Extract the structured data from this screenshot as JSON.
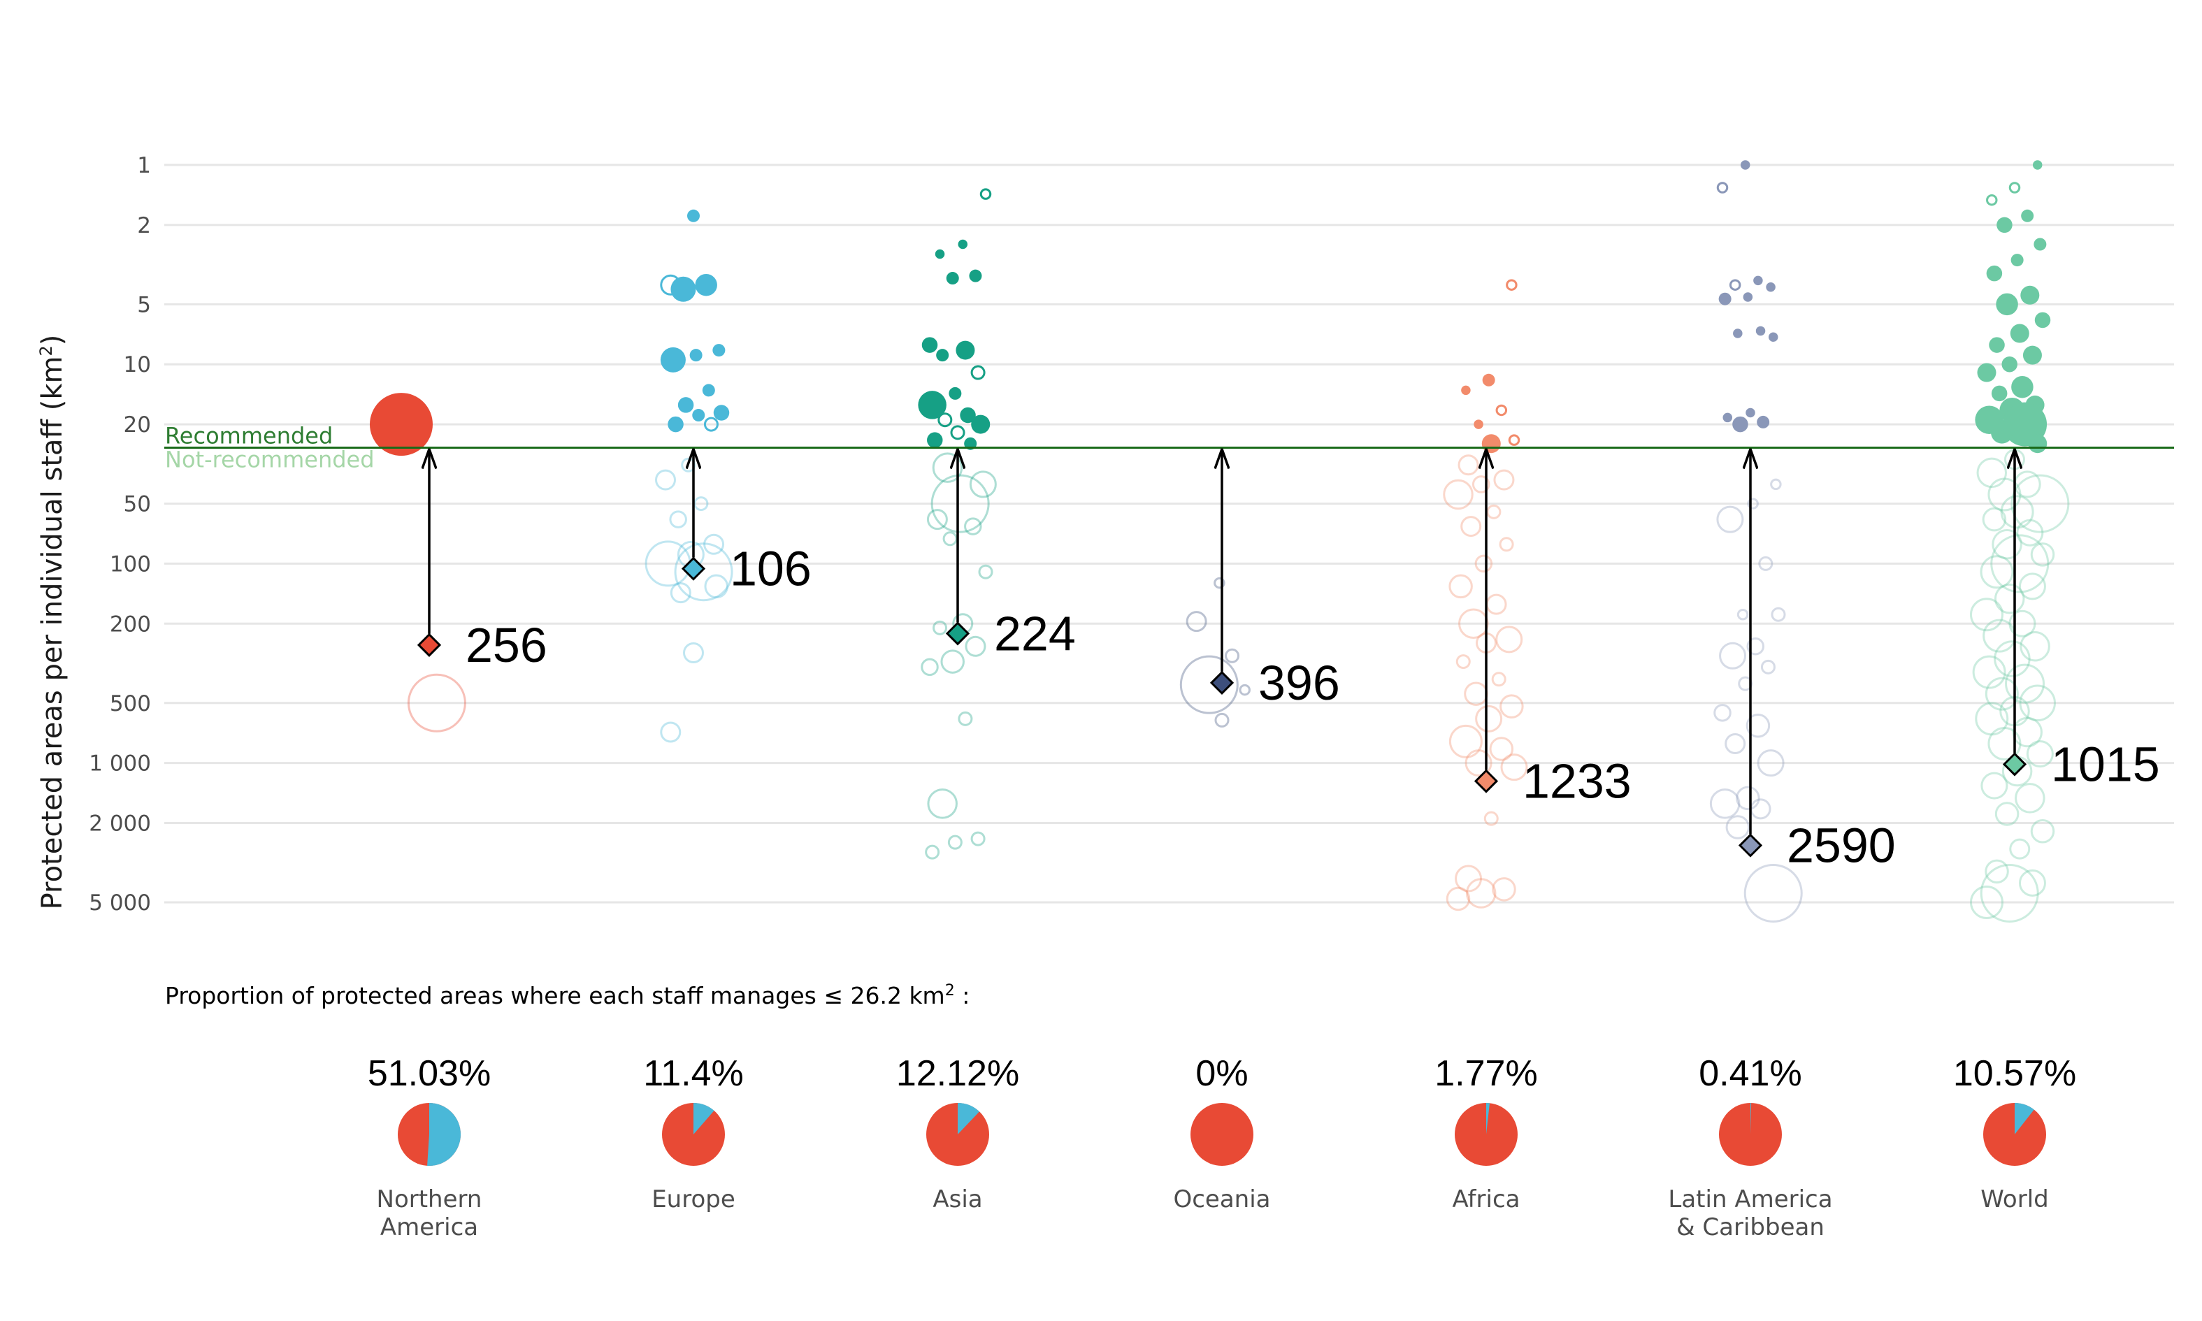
{
  "colors": {
    "recommended_line": "#1a6b1a",
    "recommended_text": "#2e7d32",
    "not_recommended_text": "#a5d6a7",
    "pie_main": "#e84a35",
    "pie_part": "#4ab8d8",
    "grid": "#e6e6e6"
  },
  "chart_data": {
    "type": "scatter",
    "ylabel": "Protected areas per individual staff (km",
    "ylabel_sup": "2",
    "ylabel_end": ")",
    "y_scale": "log, reversed",
    "ylim": [
      1,
      5000
    ],
    "y_ticks": [
      1,
      2,
      5,
      10,
      20,
      50,
      100,
      200,
      500,
      1000,
      2000,
      5000
    ],
    "y_tick_labels": [
      "1",
      "2",
      "5",
      "10",
      "20",
      "50",
      "100",
      "200",
      "500",
      "1 000",
      "2 000",
      "5 000"
    ],
    "grid": true,
    "recommended_threshold": 26.2,
    "recommended_label": "Recommended",
    "not_recommended_label": "Not-recommended",
    "categories": [
      "Northern America",
      "Europe",
      "Asia",
      "Oceania",
      "Africa",
      "Latin America & Caribbean",
      "World"
    ],
    "series": [
      {
        "region": "Northern America",
        "color": "#e84a35",
        "median": 256,
        "median_label": "256",
        "proportion": 51.03,
        "proportion_label": "51.03%",
        "label_lines": [
          "Northern",
          "America"
        ],
        "points": [
          [
            20,
            1,
            1.0
          ],
          [
            500,
            0,
            0.9
          ]
        ]
      },
      {
        "region": "Europe",
        "color": "#4ab8d8",
        "median": 106,
        "median_label": "106",
        "proportion": 11.4,
        "proportion_label": "11.4%",
        "label_lines": [
          "Europe"
        ],
        "points": [
          [
            1.8,
            1,
            0.2
          ],
          [
            4,
            0,
            0.3
          ],
          [
            4,
            1,
            0.35
          ],
          [
            4.2,
            1,
            0.4
          ],
          [
            8.5,
            1,
            0.2
          ],
          [
            9,
            1,
            0.2
          ],
          [
            9.5,
            1,
            0.4
          ],
          [
            13.5,
            1,
            0.2
          ],
          [
            16,
            1,
            0.25
          ],
          [
            17.5,
            1,
            0.25
          ],
          [
            18,
            1,
            0.2
          ],
          [
            20,
            1,
            0.25
          ],
          [
            20,
            0,
            0.2
          ],
          [
            32,
            0,
            0.2
          ],
          [
            38,
            0,
            0.3
          ],
          [
            50,
            0,
            0.2
          ],
          [
            60,
            0,
            0.25
          ],
          [
            80,
            0,
            0.3
          ],
          [
            90,
            0,
            0.4
          ],
          [
            100,
            0,
            0.7
          ],
          [
            110,
            0,
            0.9
          ],
          [
            140,
            0,
            0.3
          ],
          [
            130,
            0,
            0.35
          ],
          [
            280,
            0,
            0.3
          ],
          [
            700,
            0,
            0.3
          ]
        ]
      },
      {
        "region": "Asia",
        "color": "#16a085",
        "median": 224,
        "median_label": "224",
        "proportion": 12.12,
        "proportion_label": "12.12%",
        "label_lines": [
          "Asia"
        ],
        "points": [
          [
            1.4,
            0,
            0.15
          ],
          [
            2.5,
            1,
            0.15
          ],
          [
            2.8,
            1,
            0.15
          ],
          [
            3.6,
            1,
            0.2
          ],
          [
            3.7,
            1,
            0.2
          ],
          [
            8,
            1,
            0.25
          ],
          [
            8.5,
            1,
            0.3
          ],
          [
            9,
            1,
            0.2
          ],
          [
            11,
            0,
            0.2
          ],
          [
            14,
            1,
            0.2
          ],
          [
            16,
            1,
            0.45
          ],
          [
            18,
            1,
            0.25
          ],
          [
            19,
            0,
            0.2
          ],
          [
            20,
            1,
            0.3
          ],
          [
            22,
            0,
            0.2
          ],
          [
            24,
            1,
            0.25
          ],
          [
            25,
            1,
            0.2
          ],
          [
            33,
            0,
            0.45
          ],
          [
            40,
            0,
            0.4
          ],
          [
            50,
            0,
            0.9
          ],
          [
            60,
            0,
            0.3
          ],
          [
            65,
            0,
            0.25
          ],
          [
            75,
            0,
            0.2
          ],
          [
            110,
            0,
            0.2
          ],
          [
            200,
            0,
            0.3
          ],
          [
            210,
            0,
            0.2
          ],
          [
            260,
            0,
            0.3
          ],
          [
            310,
            0,
            0.35
          ],
          [
            330,
            0,
            0.25
          ],
          [
            600,
            0,
            0.2
          ],
          [
            1600,
            0,
            0.45
          ],
          [
            2400,
            0,
            0.2
          ],
          [
            2500,
            0,
            0.2
          ],
          [
            2800,
            0,
            0.2
          ]
        ]
      },
      {
        "region": "Oceania",
        "color": "#3d4f7c",
        "median": 396,
        "median_label": "396",
        "proportion": 0,
        "proportion_label": "0%",
        "label_lines": [
          "Oceania"
        ],
        "points": [
          [
            125,
            0,
            0.15
          ],
          [
            195,
            0,
            0.3
          ],
          [
            290,
            0,
            0.2
          ],
          [
            405,
            0,
            0.9
          ],
          [
            430,
            0,
            0.15
          ],
          [
            610,
            0,
            0.2
          ]
        ]
      },
      {
        "region": "Africa",
        "color": "#f28b6b",
        "median": 1233,
        "median_label": "1233",
        "proportion": 1.77,
        "proportion_label": "1.77%",
        "label_lines": [
          "Africa"
        ],
        "points": [
          [
            4,
            0,
            0.15
          ],
          [
            12,
            1,
            0.2
          ],
          [
            13.5,
            1,
            0.15
          ],
          [
            17,
            0,
            0.15
          ],
          [
            20,
            1,
            0.15
          ],
          [
            24,
            0,
            0.15
          ],
          [
            25,
            1,
            0.3
          ],
          [
            32,
            0,
            0.3
          ],
          [
            38,
            0,
            0.3
          ],
          [
            40,
            0,
            0.25
          ],
          [
            45,
            0,
            0.45
          ],
          [
            55,
            0,
            0.2
          ],
          [
            65,
            0,
            0.3
          ],
          [
            80,
            0,
            0.2
          ],
          [
            100,
            0,
            0.25
          ],
          [
            130,
            0,
            0.35
          ],
          [
            160,
            0,
            0.3
          ],
          [
            200,
            0,
            0.45
          ],
          [
            240,
            0,
            0.4
          ],
          [
            250,
            0,
            0.3
          ],
          [
            310,
            0,
            0.2
          ],
          [
            380,
            0,
            0.2
          ],
          [
            450,
            0,
            0.35
          ],
          [
            520,
            0,
            0.35
          ],
          [
            600,
            0,
            0.4
          ],
          [
            780,
            0,
            0.5
          ],
          [
            850,
            0,
            0.35
          ],
          [
            1000,
            0,
            0.4
          ],
          [
            1050,
            0,
            0.4
          ],
          [
            1900,
            0,
            0.2
          ],
          [
            3800,
            0,
            0.4
          ],
          [
            4300,
            0,
            0.35
          ],
          [
            4500,
            0,
            0.45
          ],
          [
            4800,
            0,
            0.35
          ]
        ]
      },
      {
        "region": "Latin America & Caribbean",
        "color": "#8a97b8",
        "median": 2590,
        "median_label": "2590",
        "proportion": 0.41,
        "proportion_label": "0.41%",
        "label_lines": [
          "Latin America",
          "& Caribbean"
        ],
        "points": [
          [
            1,
            1,
            0.15
          ],
          [
            1.3,
            0,
            0.15
          ],
          [
            3.8,
            1,
            0.15
          ],
          [
            4,
            0,
            0.15
          ],
          [
            4.1,
            1,
            0.15
          ],
          [
            4.6,
            1,
            0.15
          ],
          [
            4.7,
            1,
            0.2
          ],
          [
            6.8,
            1,
            0.15
          ],
          [
            7,
            1,
            0.15
          ],
          [
            7.3,
            1,
            0.15
          ],
          [
            17.5,
            1,
            0.15
          ],
          [
            18.5,
            1,
            0.15
          ],
          [
            19.5,
            1,
            0.2
          ],
          [
            20,
            1,
            0.25
          ],
          [
            40,
            0,
            0.15
          ],
          [
            50,
            0,
            0.15
          ],
          [
            60,
            0,
            0.4
          ],
          [
            100,
            0,
            0.2
          ],
          [
            180,
            0,
            0.15
          ],
          [
            180,
            0,
            0.2
          ],
          [
            260,
            0,
            0.25
          ],
          [
            290,
            0,
            0.4
          ],
          [
            330,
            0,
            0.2
          ],
          [
            400,
            0,
            0.2
          ],
          [
            560,
            0,
            0.25
          ],
          [
            650,
            0,
            0.35
          ],
          [
            800,
            0,
            0.3
          ],
          [
            1000,
            0,
            0.4
          ],
          [
            1500,
            0,
            0.35
          ],
          [
            1600,
            0,
            0.45
          ],
          [
            1700,
            0,
            0.3
          ],
          [
            2100,
            0,
            0.35
          ],
          [
            4500,
            0,
            0.9
          ]
        ]
      },
      {
        "region": "World",
        "color": "#6cc9a3",
        "median": 1015,
        "median_label": "1015",
        "proportion": 10.57,
        "proportion_label": "10.57%",
        "label_lines": [
          "World"
        ],
        "points": [
          [
            1,
            1,
            0.15
          ],
          [
            1.3,
            0,
            0.15
          ],
          [
            1.5,
            0,
            0.15
          ],
          [
            1.8,
            1,
            0.2
          ],
          [
            2,
            1,
            0.25
          ],
          [
            2.5,
            1,
            0.2
          ],
          [
            3,
            1,
            0.2
          ],
          [
            3.5,
            1,
            0.25
          ],
          [
            4.5,
            1,
            0.3
          ],
          [
            5,
            1,
            0.35
          ],
          [
            6,
            1,
            0.25
          ],
          [
            7,
            1,
            0.3
          ],
          [
            8,
            1,
            0.25
          ],
          [
            9,
            1,
            0.3
          ],
          [
            10,
            1,
            0.25
          ],
          [
            11,
            1,
            0.3
          ],
          [
            13,
            1,
            0.35
          ],
          [
            14,
            1,
            0.25
          ],
          [
            16,
            1,
            0.3
          ],
          [
            17,
            1,
            0.4
          ],
          [
            19,
            1,
            0.45
          ],
          [
            20,
            1,
            0.7
          ],
          [
            22,
            1,
            0.35
          ],
          [
            25,
            1,
            0.3
          ],
          [
            30,
            0,
            0.3
          ],
          [
            35,
            0,
            0.45
          ],
          [
            40,
            0,
            0.4
          ],
          [
            45,
            0,
            0.5
          ],
          [
            50,
            0,
            0.9
          ],
          [
            55,
            0,
            0.5
          ],
          [
            60,
            0,
            0.35
          ],
          [
            70,
            0,
            0.4
          ],
          [
            80,
            0,
            0.45
          ],
          [
            90,
            0,
            0.35
          ],
          [
            100,
            0,
            0.9
          ],
          [
            110,
            0,
            0.5
          ],
          [
            130,
            0,
            0.4
          ],
          [
            150,
            0,
            0.45
          ],
          [
            180,
            0,
            0.5
          ],
          [
            200,
            0,
            0.4
          ],
          [
            230,
            0,
            0.5
          ],
          [
            260,
            0,
            0.45
          ],
          [
            300,
            0,
            0.55
          ],
          [
            350,
            0,
            0.5
          ],
          [
            400,
            0,
            0.6
          ],
          [
            450,
            0,
            0.5
          ],
          [
            500,
            0,
            0.55
          ],
          [
            550,
            0,
            0.45
          ],
          [
            600,
            0,
            0.5
          ],
          [
            700,
            0,
            0.45
          ],
          [
            800,
            0,
            0.5
          ],
          [
            900,
            0,
            0.4
          ],
          [
            1100,
            0,
            0.45
          ],
          [
            1300,
            0,
            0.4
          ],
          [
            1500,
            0,
            0.45
          ],
          [
            1800,
            0,
            0.35
          ],
          [
            2200,
            0,
            0.35
          ],
          [
            2700,
            0,
            0.3
          ],
          [
            3500,
            0,
            0.35
          ],
          [
            4000,
            0,
            0.4
          ],
          [
            4500,
            0,
            0.9
          ],
          [
            5000,
            0,
            0.5
          ]
        ]
      }
    ],
    "proportion_note_prefix": "Proportion of protected areas where each staff manages",
    "proportion_note_symbol": "≤",
    "proportion_note_value": "26.2 km",
    "proportion_note_sup": "2",
    "proportion_note_end": ":"
  }
}
